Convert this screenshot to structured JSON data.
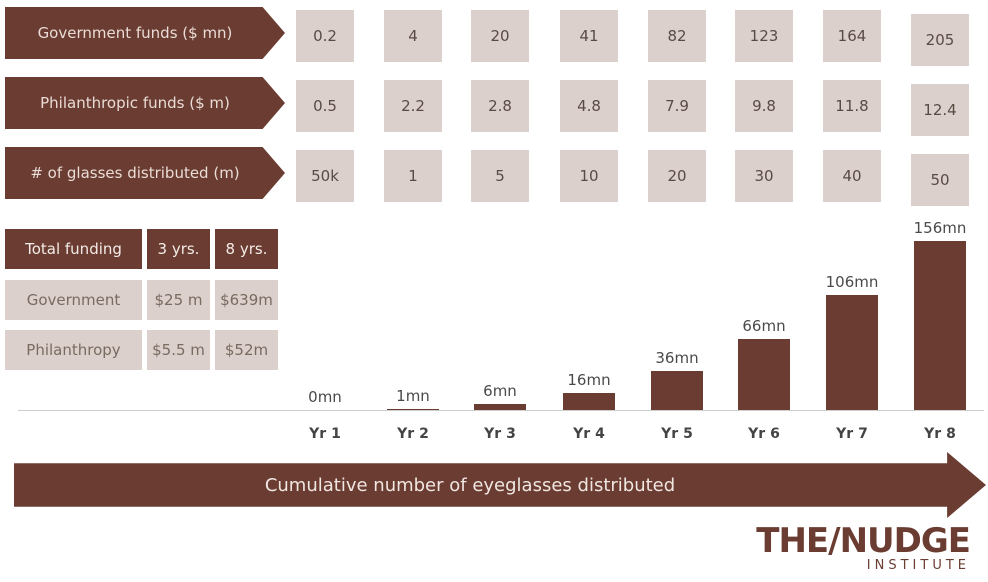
{
  "rows": [
    {
      "label": "Government  funds ($ mn)",
      "values": [
        "0.2",
        "4",
        "20",
        "41",
        "82",
        "123",
        "164",
        "205"
      ]
    },
    {
      "label": "Philanthropic  funds ($ m)",
      "values": [
        "0.5",
        "2.2",
        "2.8",
        "4.8",
        "7.9",
        "9.8",
        "11.8",
        "12.4"
      ]
    },
    {
      "label": "# of glasses distributed (m)",
      "values": [
        "50k",
        "1",
        "5",
        "10",
        "20",
        "30",
        "40",
        "50"
      ]
    }
  ],
  "funding_table": {
    "header": [
      "Total funding",
      "3 yrs.",
      "8 yrs."
    ],
    "rows": [
      [
        "Government",
        "$25 m",
        "$639m"
      ],
      [
        "Philanthropy",
        "$5.5 m",
        "$52m"
      ]
    ]
  },
  "chart_data": {
    "type": "bar",
    "categories": [
      "Yr 1",
      "Yr 2",
      "Yr 3",
      "Yr 4",
      "Yr 5",
      "Yr 6",
      "Yr 7",
      "Yr 8"
    ],
    "values": [
      0,
      1,
      6,
      16,
      36,
      66,
      106,
      156
    ],
    "data_labels": [
      "0mn",
      "1mn",
      "6mn",
      "16mn",
      "36mn",
      "66mn",
      "106mn",
      "156mn"
    ],
    "ylim": [
      0,
      156
    ],
    "xlabel": "Cumulative number of eyeglasses distributed"
  },
  "logo": {
    "main": "THE/NUDGE",
    "sub": "INSTITUTE"
  },
  "colors": {
    "brand": "#6b3d32",
    "light": "#dbd0cc"
  }
}
